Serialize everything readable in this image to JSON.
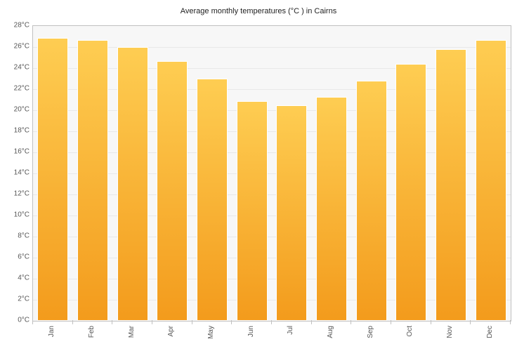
{
  "chart": {
    "type": "bar",
    "title": "Average monthly temperatures (°C ) in Cairns",
    "title_fontsize": 11,
    "title_color": "#222222",
    "background_color": "#ffffff",
    "plot_background_color": "#f7f7f7",
    "grid_color": "#e8e8e8",
    "axis_color": "#c0c0c0",
    "label_color": "#555555",
    "label_fontsize": 10,
    "ylim": [
      0,
      28
    ],
    "ytick_step": 2,
    "y_unit": "°C",
    "categories": [
      "Jan",
      "Feb",
      "Mar",
      "Apr",
      "May",
      "Jun",
      "Jul",
      "Aug",
      "Sep",
      "Oct",
      "Nov",
      "Dec"
    ],
    "values": [
      26.9,
      26.7,
      26.0,
      24.7,
      23.0,
      20.9,
      20.5,
      21.3,
      22.8,
      24.4,
      25.8,
      26.7
    ],
    "bar_gradient_top": "#fecd52",
    "bar_gradient_bottom": "#f39b1c",
    "bar_border_color": "#ffffff",
    "bar_width_ratio": 0.78
  }
}
